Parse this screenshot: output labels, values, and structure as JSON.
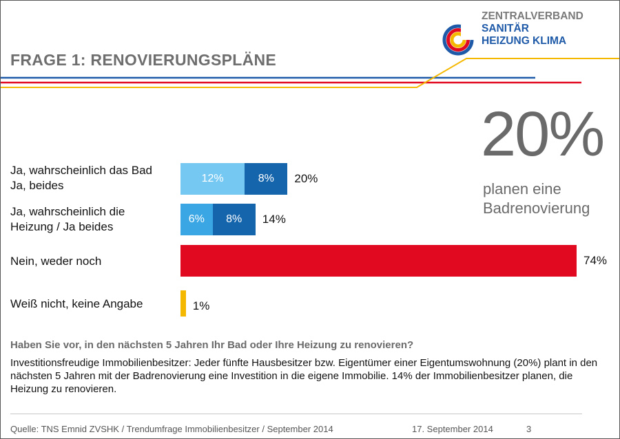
{
  "header": {
    "title": "FRAGE 1: RENOVIERUNGSPLÄNE",
    "logo_lines": [
      "ZENTRALVERBAND",
      "SANITÄR",
      "HEIZUNG KLIMA"
    ]
  },
  "colors": {
    "light_blue": "#75c8f2",
    "mid_blue": "#3aa6e3",
    "dark_blue": "#1565ad",
    "red": "#e0091f",
    "yellow": "#f5b800",
    "gray_text": "#6a6a6a"
  },
  "highlight": {
    "value": "20%",
    "caption_lines": [
      "planen eine",
      "Badrenovierung"
    ]
  },
  "chart_data": {
    "type": "bar",
    "orientation": "horizontal",
    "stacked": true,
    "categories": [
      [
        "Ja, wahrscheinlich das Bad",
        "Ja, beides"
      ],
      [
        "Ja, wahrscheinlich die",
        "Heizung / Ja beides"
      ],
      [
        "Nein, weder noch"
      ],
      [
        "Weiß nicht, keine Angabe"
      ]
    ],
    "rows": [
      {
        "segments": [
          {
            "value": 12,
            "label": "12%",
            "color": "#75c8f2"
          },
          {
            "value": 8,
            "label": "8%",
            "color": "#1565ad"
          }
        ],
        "total_label": "20%"
      },
      {
        "segments": [
          {
            "value": 6,
            "label": "6%",
            "color": "#3aa6e3"
          },
          {
            "value": 8,
            "label": "8%",
            "color": "#1565ad"
          }
        ],
        "total_label": "14%"
      },
      {
        "segments": [
          {
            "value": 74,
            "label": "",
            "color": "#e0091f"
          }
        ],
        "total_label": "74%"
      },
      {
        "segments": [
          {
            "value": 1,
            "label": "",
            "color": "#f5b800"
          }
        ],
        "total_label": "1%"
      }
    ],
    "xlim": [
      0,
      74
    ]
  },
  "question": "Haben Sie vor, in den nächsten 5 Jahren Ihr Bad oder Ihre Heizung zu renovieren?",
  "description": "Investitionsfreudige Immobilienbesitzer: Jeder fünfte Hausbesitzer bzw. Eigentümer einer Eigentumswohnung (20%) plant in den nächsten 5 Jahren mit der Badrenovierung eine Investition in die eigene Immobilie. 14% der Immobilienbesitzer planen, die Heizung zu renovieren.",
  "footer": {
    "source": "Quelle: TNS Emnid ZVSHK / Trendumfrage Immobilienbesitzer / September 2014",
    "date": "17. September 2014",
    "page": "3"
  }
}
